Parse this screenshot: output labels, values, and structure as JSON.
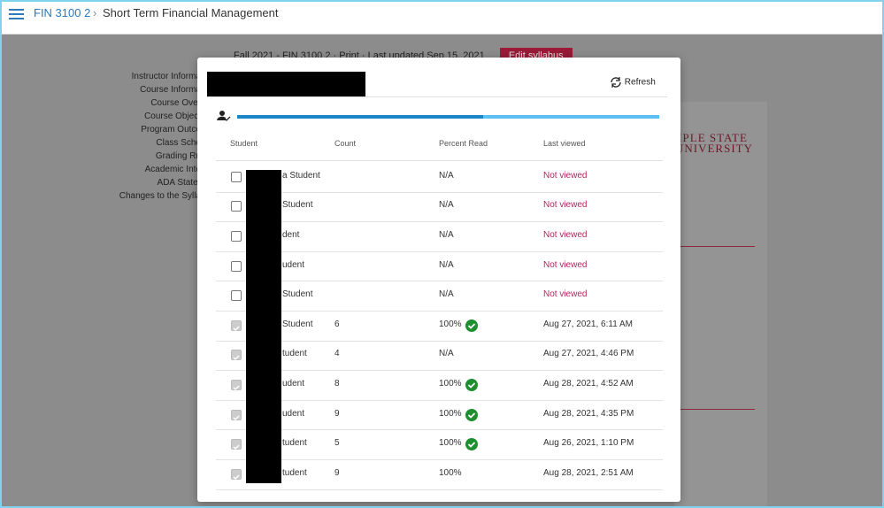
{
  "header": {
    "course": "FIN 3100 2",
    "title": "Short Term Financial Management"
  },
  "background": {
    "toolbar": [
      "Fall 2021 - FIN 3100 2",
      "Print",
      "Last updated Sep 15, 2021",
      "Edit syllabus"
    ],
    "nav": [
      "Instructor Informa",
      "Course Informa",
      "Course Over",
      "Course Object",
      "Program Outco",
      "Class Sche",
      "Grading Ru",
      "Academic Inte",
      "ADA Stater",
      "Changes to the Sylla"
    ],
    "logo": [
      "MPLE STATE",
      "UNIVERSITY"
    ]
  },
  "modal": {
    "refresh": "Refresh",
    "table": {
      "headers": [
        "Student",
        "Count",
        "Percent Read",
        "Last viewed"
      ],
      "rows": [
        {
          "checked": false,
          "student": "a Student",
          "percent_read": "N/A",
          "last_viewed": "Not viewed"
        },
        {
          "checked": false,
          "student": "Student",
          "percent_read": "N/A",
          "last_viewed": "Not viewed"
        },
        {
          "checked": false,
          "student": "dent",
          "percent_read": "N/A",
          "last_viewed": "Not viewed"
        },
        {
          "checked": false,
          "student": "udent",
          "percent_read": "N/A",
          "last_viewed": "Not viewed"
        },
        {
          "checked": false,
          "student": "Student",
          "percent_read": "N/A",
          "last_viewed": "Not viewed"
        },
        {
          "checked": true,
          "student": "Student",
          "count": "6",
          "percent_read": "100%",
          "read_icon": true,
          "last_viewed": "Aug 27, 2021, 6:11 AM"
        },
        {
          "checked": true,
          "student": "tudent",
          "count": "4",
          "percent_read": "N/A",
          "last_viewed": "Aug 27, 2021, 4:46 PM"
        },
        {
          "checked": true,
          "student": "udent",
          "count": "8",
          "percent_read": "100%",
          "read_icon": true,
          "last_viewed": "Aug 28, 2021, 4:52 AM"
        },
        {
          "checked": true,
          "student": "udent",
          "count": "9",
          "percent_read": "100%",
          "read_icon": true,
          "last_viewed": "Aug 28, 2021, 4:35 PM"
        },
        {
          "checked": true,
          "student": "tudent",
          "count": "5",
          "percent_read": "100%",
          "read_icon": true,
          "last_viewed": "Aug 26, 2021, 1:10 PM"
        },
        {
          "checked": true,
          "student": "tudent",
          "count": "9",
          "percent_read": "100%",
          "last_viewed": "Aug 28, 2021, 2:51 AM"
        }
      ]
    }
  }
}
